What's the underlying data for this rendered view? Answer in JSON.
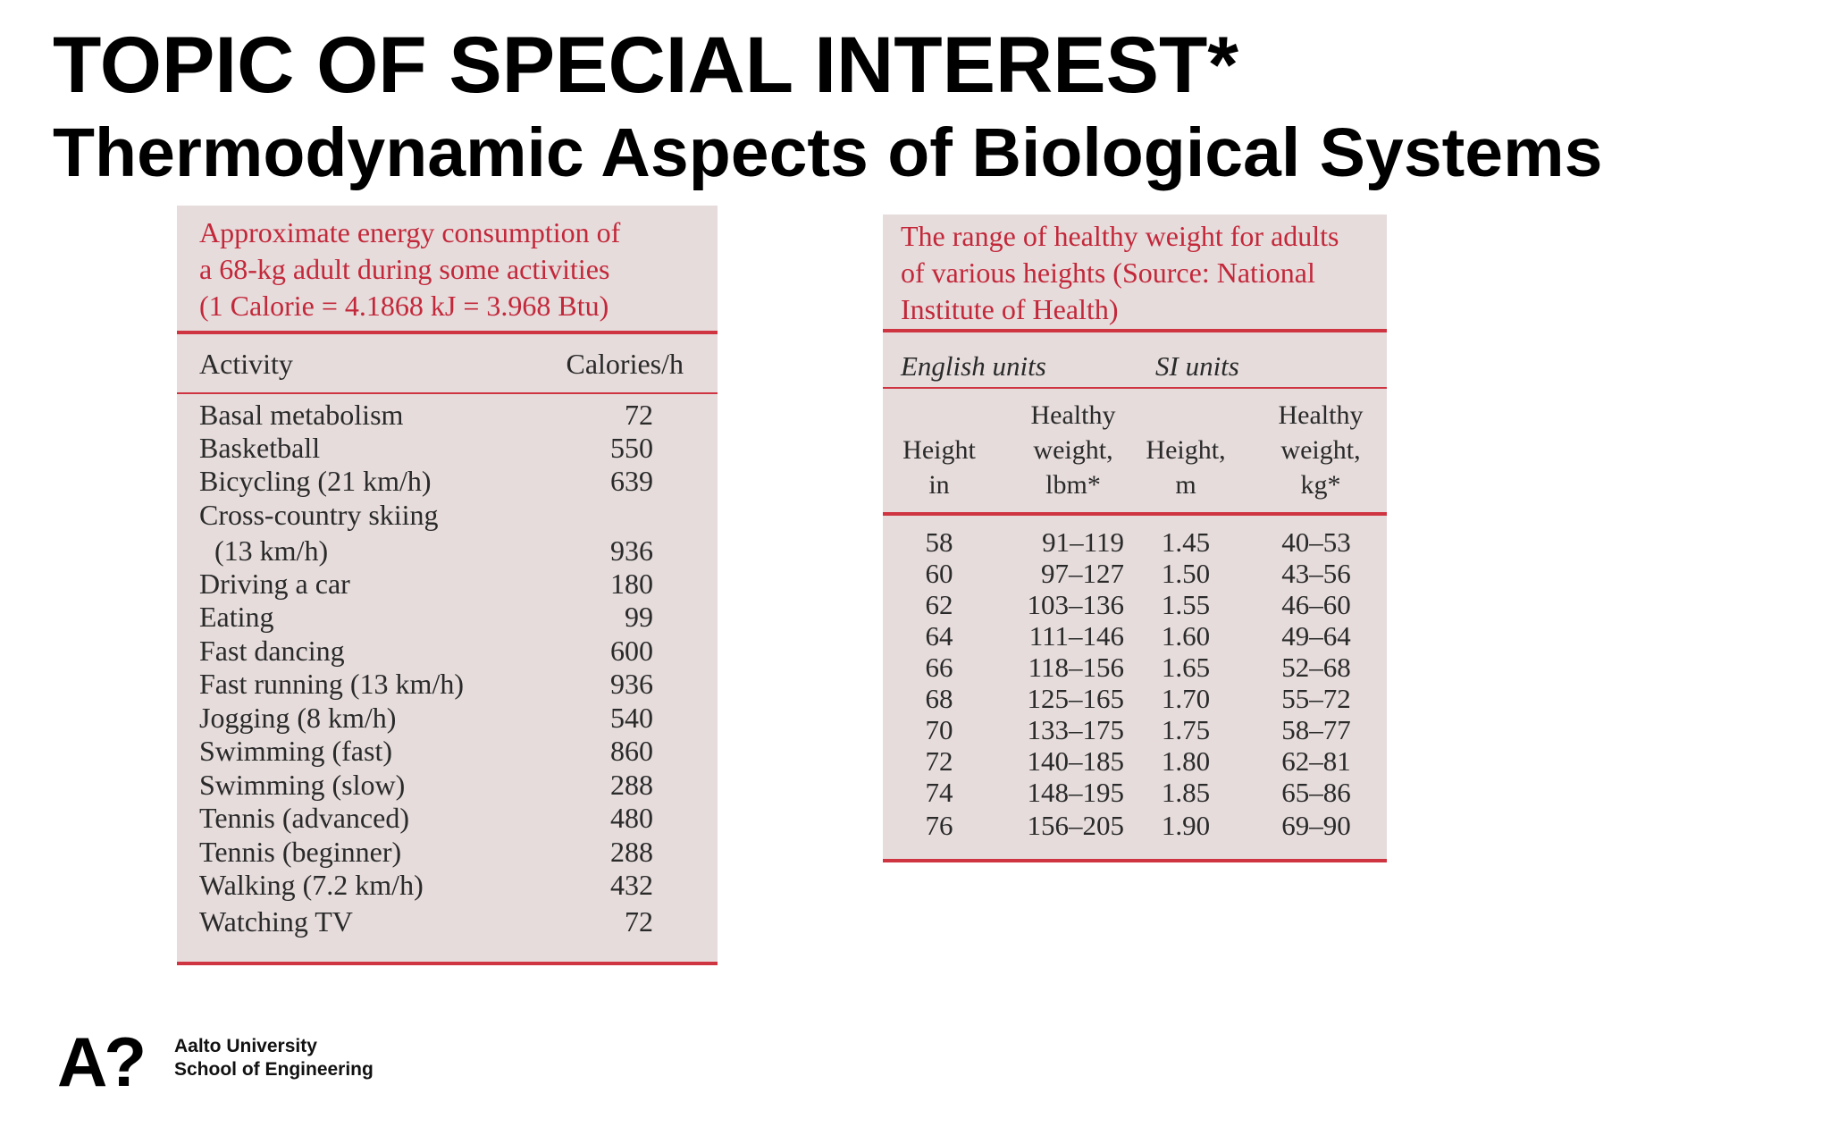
{
  "slide": {
    "title": "TOPIC OF SPECIAL INTEREST*",
    "subtitle": "Thermodynamic Aspects of Biological Systems"
  },
  "energy_table": {
    "caption_lines": [
      "Approximate energy consumption of",
      "a 68-kg adult during some activities",
      "(1 Calorie = 4.1868 kJ = 3.968 Btu)"
    ],
    "headers": {
      "activity": "Activity",
      "calories": "Calories/h"
    },
    "rows": [
      {
        "activity": "Basal metabolism",
        "calories": "72"
      },
      {
        "activity": "Basketball",
        "calories": "550"
      },
      {
        "activity": "Bicycling (21 km/h)",
        "calories": "639"
      },
      {
        "activity": "Cross-country skiing",
        "calories": ""
      },
      {
        "activity": "(13 km/h)",
        "calories": "936"
      },
      {
        "activity": "Driving a car",
        "calories": "180"
      },
      {
        "activity": "Eating",
        "calories": "99"
      },
      {
        "activity": "Fast dancing",
        "calories": "600"
      },
      {
        "activity": "Fast running (13 km/h)",
        "calories": "936"
      },
      {
        "activity": "Jogging (8 km/h)",
        "calories": "540"
      },
      {
        "activity": "Swimming (fast)",
        "calories": "860"
      },
      {
        "activity": "Swimming (slow)",
        "calories": "288"
      },
      {
        "activity": "Tennis (advanced)",
        "calories": "480"
      },
      {
        "activity": "Tennis (beginner)",
        "calories": "288"
      },
      {
        "activity": "Walking (7.2 km/h)",
        "calories": "432"
      },
      {
        "activity": "Watching TV",
        "calories": "72"
      }
    ]
  },
  "weight_table": {
    "caption_lines": [
      "The range of healthy weight for adults",
      "of various heights (Source: National",
      "Institute of Health)"
    ],
    "unit_groups": {
      "english": "English units",
      "si": "SI units"
    },
    "headers": {
      "height_in": [
        "",
        "Height",
        "in"
      ],
      "weight_lbm": [
        "Healthy",
        "weight,",
        "lbm*"
      ],
      "height_m": [
        "",
        "Height,",
        "m"
      ],
      "weight_kg": [
        "Healthy",
        "weight,",
        "kg*"
      ]
    },
    "rows": [
      {
        "height_in": "58",
        "weight_lbm": "91–119",
        "height_m": "1.45",
        "weight_kg": "40–53"
      },
      {
        "height_in": "60",
        "weight_lbm": "97–127",
        "height_m": "1.50",
        "weight_kg": "43–56"
      },
      {
        "height_in": "62",
        "weight_lbm": "103–136",
        "height_m": "1.55",
        "weight_kg": "46–60"
      },
      {
        "height_in": "64",
        "weight_lbm": "111–146",
        "height_m": "1.60",
        "weight_kg": "49–64"
      },
      {
        "height_in": "66",
        "weight_lbm": "118–156",
        "height_m": "1.65",
        "weight_kg": "52–68"
      },
      {
        "height_in": "68",
        "weight_lbm": "125–165",
        "height_m": "1.70",
        "weight_kg": "55–72"
      },
      {
        "height_in": "70",
        "weight_lbm": "133–175",
        "height_m": "1.75",
        "weight_kg": "58–77"
      },
      {
        "height_in": "72",
        "weight_lbm": "140–185",
        "height_m": "1.80",
        "weight_kg": "62–81"
      },
      {
        "height_in": "74",
        "weight_lbm": "148–195",
        "height_m": "1.85",
        "weight_kg": "65–86"
      },
      {
        "height_in": "76",
        "weight_lbm": "156–205",
        "height_m": "1.90",
        "weight_kg": "69–90"
      }
    ]
  },
  "footer": {
    "logo_mark": "A?",
    "university": "Aalto University",
    "school": "School of Engineering"
  },
  "colors": {
    "table_bg": "#e6dcdc",
    "accent_red": "#cf3441",
    "caption_red": "#c3283a"
  }
}
